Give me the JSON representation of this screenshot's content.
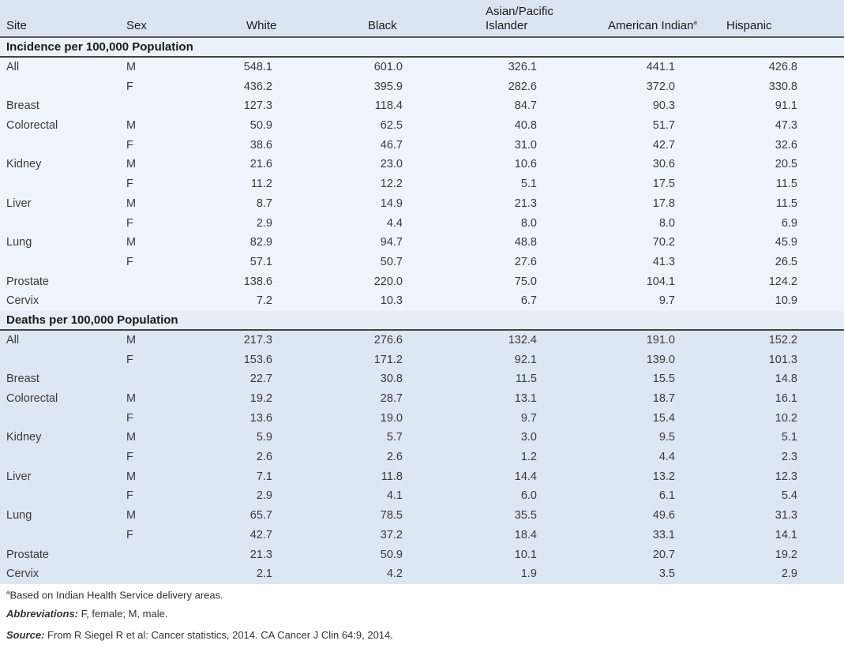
{
  "header": {
    "site": "Site",
    "sex": "Sex",
    "white": "White",
    "black": "Black",
    "asian": "Asian/Pacific Islander",
    "amind": "American Indian",
    "amind_sup": "a",
    "hispanic": "Hispanic"
  },
  "sections": [
    {
      "title": "Incidence per 100,000 Population",
      "rows": [
        [
          "All",
          "M",
          "548.1",
          "601.0",
          "326.1",
          "441.1",
          "426.8"
        ],
        [
          "",
          "F",
          "436.2",
          "395.9",
          "282.6",
          "372.0",
          "330.8"
        ],
        [
          "Breast",
          "",
          "127.3",
          "118.4",
          "84.7",
          "90.3",
          "91.1"
        ],
        [
          "Colorectal",
          "M",
          "50.9",
          "62.5",
          "40.8",
          "51.7",
          "47.3"
        ],
        [
          "",
          "F",
          "38.6",
          "46.7",
          "31.0",
          "42.7",
          "32.6"
        ],
        [
          "Kidney",
          "M",
          "21.6",
          "23.0",
          "10.6",
          "30.6",
          "20.5"
        ],
        [
          "",
          "F",
          "11.2",
          "12.2",
          "5.1",
          "17.5",
          "11.5"
        ],
        [
          "Liver",
          "M",
          "8.7",
          "14.9",
          "21.3",
          "17.8",
          "11.5"
        ],
        [
          "",
          "F",
          "2.9",
          "4.4",
          "8.0",
          "8.0",
          "6.9"
        ],
        [
          "Lung",
          "M",
          "82.9",
          "94.7",
          "48.8",
          "70.2",
          "45.9"
        ],
        [
          "",
          "F",
          "57.1",
          "50.7",
          "27.6",
          "41.3",
          "26.5"
        ],
        [
          "Prostate",
          "",
          "138.6",
          "220.0",
          "75.0",
          "104.1",
          "124.2"
        ],
        [
          "Cervix",
          "",
          "7.2",
          "10.3",
          "6.7",
          "9.7",
          "10.9"
        ]
      ]
    },
    {
      "title": "Deaths per 100,000 Population",
      "rows": [
        [
          "All",
          "M",
          "217.3",
          "276.6",
          "132.4",
          "191.0",
          "152.2"
        ],
        [
          "",
          "F",
          "153.6",
          "171.2",
          "92.1",
          "139.0",
          "101.3"
        ],
        [
          "Breast",
          "",
          "22.7",
          "30.8",
          "11.5",
          "15.5",
          "14.8"
        ],
        [
          "Colorectal",
          "M",
          "19.2",
          "28.7",
          "13.1",
          "18.7",
          "16.1"
        ],
        [
          "",
          "F",
          "13.6",
          "19.0",
          "9.7",
          "15.4",
          "10.2"
        ],
        [
          "Kidney",
          "M",
          "5.9",
          "5.7",
          "3.0",
          "9.5",
          "5.1"
        ],
        [
          "",
          "F",
          "2.6",
          "2.6",
          "1.2",
          "4.4",
          "2.3"
        ],
        [
          "Liver",
          "M",
          "7.1",
          "11.8",
          "14.4",
          "13.2",
          "12.3"
        ],
        [
          "",
          "F",
          "2.9",
          "4.1",
          "6.0",
          "6.1",
          "5.4"
        ],
        [
          "Lung",
          "M",
          "65.7",
          "78.5",
          "35.5",
          "49.6",
          "31.3"
        ],
        [
          "",
          "F",
          "42.7",
          "37.2",
          "18.4",
          "33.1",
          "14.1"
        ],
        [
          "Prostate",
          "",
          "21.3",
          "50.9",
          "10.1",
          "20.7",
          "19.2"
        ],
        [
          "Cervix",
          "",
          "2.1",
          "4.2",
          "1.9",
          "3.5",
          "2.9"
        ]
      ]
    }
  ],
  "notes": {
    "footnote_mark": "a",
    "footnote": "Based on Indian Health Service delivery areas.",
    "abbr_label": "Abbreviations:",
    "abbr": " F, female; M, male.",
    "source_label": "Source:",
    "source": " From R Siegel R et al: Cancer statistics, 2014. CA Cancer J Clin 64:9, 2014."
  },
  "colors": {
    "header_bg": "#dbe5f1",
    "incidence_bg": "#eef4fb",
    "deaths_bg": "#dde7f3"
  }
}
